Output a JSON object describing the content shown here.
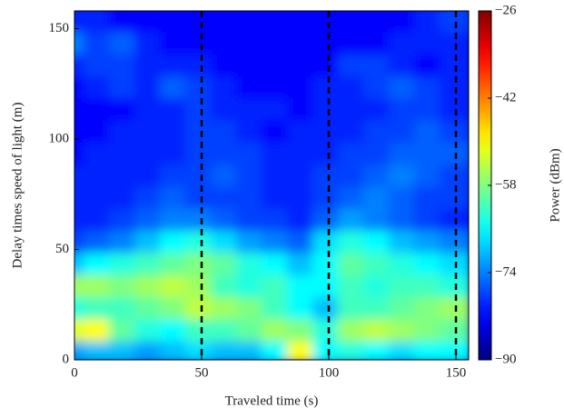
{
  "chart_data": {
    "type": "heatmap",
    "xlabel": "Traveled time (s)",
    "ylabel": "Delay times speed of light (m)",
    "colorbar_label": "Power (dBm)",
    "x": [
      0,
      10,
      20,
      30,
      40,
      50,
      60,
      70,
      80,
      90,
      100,
      110,
      120,
      130,
      140,
      150
    ],
    "y": [
      5,
      15,
      25,
      35,
      45,
      55,
      65,
      75,
      85,
      95,
      105,
      115,
      125,
      135,
      145,
      155
    ],
    "z": [
      [
        -72,
        -70,
        -70,
        -72,
        -70,
        -68,
        -70,
        -70,
        -66,
        -50,
        -66,
        -64,
        -66,
        -68,
        -66,
        -66
      ],
      [
        -52,
        -50,
        -60,
        -64,
        -66,
        -62,
        -62,
        -60,
        -56,
        -58,
        -64,
        -56,
        -54,
        -56,
        -58,
        -60
      ],
      [
        -64,
        -62,
        -62,
        -60,
        -58,
        -54,
        -56,
        -58,
        -62,
        -66,
        -70,
        -62,
        -62,
        -60,
        -58,
        -56
      ],
      [
        -56,
        -56,
        -58,
        -56,
        -54,
        -56,
        -62,
        -64,
        -62,
        -66,
        -66,
        -62,
        -64,
        -62,
        -62,
        -64
      ],
      [
        -70,
        -66,
        -64,
        -62,
        -60,
        -58,
        -60,
        -64,
        -66,
        -70,
        -66,
        -60,
        -62,
        -64,
        -66,
        -68
      ],
      [
        -78,
        -76,
        -74,
        -70,
        -66,
        -64,
        -68,
        -72,
        -74,
        -76,
        -68,
        -64,
        -66,
        -70,
        -72,
        -74
      ],
      [
        -80,
        -80,
        -78,
        -76,
        -74,
        -74,
        -76,
        -78,
        -78,
        -80,
        -76,
        -72,
        -74,
        -76,
        -78,
        -80
      ],
      [
        -80,
        -80,
        -80,
        -78,
        -76,
        -78,
        -78,
        -78,
        -80,
        -80,
        -78,
        -76,
        -74,
        -76,
        -78,
        -78
      ],
      [
        -80,
        -80,
        -80,
        -80,
        -78,
        -78,
        -76,
        -78,
        -80,
        -80,
        -78,
        -78,
        -76,
        -74,
        -76,
        -78
      ],
      [
        -82,
        -80,
        -80,
        -80,
        -80,
        -78,
        -78,
        -78,
        -80,
        -80,
        -80,
        -78,
        -78,
        -76,
        -76,
        -76
      ],
      [
        -82,
        -82,
        -80,
        -80,
        -80,
        -78,
        -78,
        -80,
        -82,
        -80,
        -80,
        -80,
        -78,
        -78,
        -76,
        -78
      ],
      [
        -82,
        -82,
        -82,
        -80,
        -80,
        -78,
        -80,
        -80,
        -80,
        -82,
        -80,
        -80,
        -80,
        -78,
        -78,
        -80
      ],
      [
        -82,
        -80,
        -78,
        -80,
        -76,
        -78,
        -80,
        -82,
        -82,
        -82,
        -80,
        -80,
        -78,
        -76,
        -78,
        -80
      ],
      [
        -80,
        -78,
        -78,
        -80,
        -80,
        -80,
        -82,
        -82,
        -82,
        -82,
        -82,
        -78,
        -78,
        -80,
        -82,
        -80
      ],
      [
        -74,
        -78,
        -76,
        -80,
        -82,
        -82,
        -82,
        -82,
        -82,
        -82,
        -82,
        -82,
        -82,
        -80,
        -80,
        -80
      ],
      [
        -80,
        -80,
        -82,
        -82,
        -82,
        -82,
        -82,
        -82,
        -82,
        -82,
        -82,
        -82,
        -82,
        -82,
        -80,
        -78
      ]
    ],
    "xlim": [
      0,
      155
    ],
    "xticks": [
      0,
      50,
      100,
      150
    ],
    "ylim": [
      0,
      158
    ],
    "yticks": [
      0,
      50,
      100,
      150
    ],
    "zlim": [
      -90,
      -26
    ],
    "zticks": [
      {
        "value": -26,
        "label": "−26"
      },
      {
        "value": -42,
        "label": "−42"
      },
      {
        "value": -58,
        "label": "−58"
      },
      {
        "value": -74,
        "label": "−74"
      },
      {
        "value": -90,
        "label": "−90"
      }
    ],
    "colormap": "jet",
    "vlines": [
      50,
      100,
      150
    ]
  }
}
